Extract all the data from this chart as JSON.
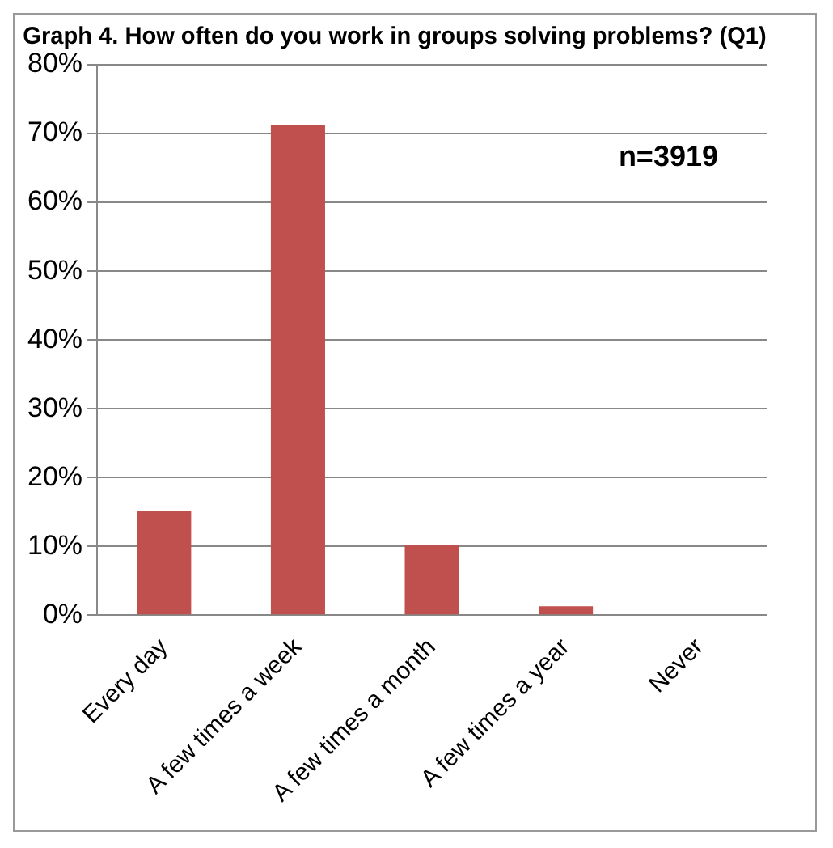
{
  "chart_data": {
    "type": "bar",
    "title": "Graph 4. How often do you work in groups solving problems? (Q1)",
    "categories": [
      "Every day",
      "A few times a week",
      "A few times a month",
      "A few times a year",
      "Never"
    ],
    "values": [
      15.2,
      71.3,
      10.2,
      1.3,
      null
    ],
    "color": "#c0504d",
    "ylim": [
      0,
      80
    ],
    "yticks": [
      {
        "value": 0,
        "label": "0%"
      },
      {
        "value": 10,
        "label": "10%"
      },
      {
        "value": 20,
        "label": "20%"
      },
      {
        "value": 30,
        "label": "30%"
      },
      {
        "value": 40,
        "label": "40%"
      },
      {
        "value": 50,
        "label": "50%"
      },
      {
        "value": 60,
        "label": "60%"
      },
      {
        "value": 70,
        "label": "70%"
      },
      {
        "value": 80,
        "label": "80%"
      }
    ],
    "grid": "y",
    "legend": false,
    "annotations": [
      "n=3919"
    ]
  }
}
